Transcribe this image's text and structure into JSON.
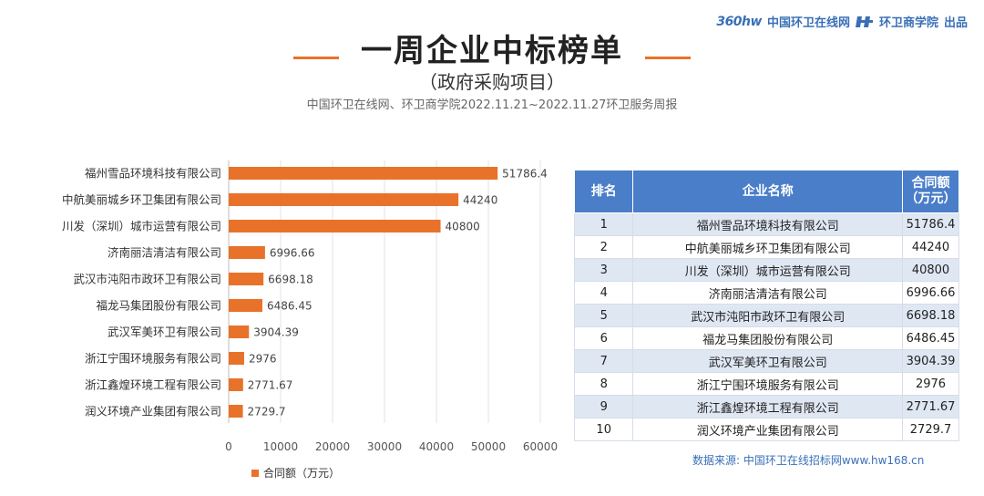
{
  "brand": {
    "logo_360": "360hw",
    "site": "中国环卫在线网",
    "school": "环卫商学院",
    "suffix": "出品"
  },
  "header": {
    "title": "一周企业中标榜单",
    "subtitle": "（政府采购项目）",
    "caption": "中国环卫在线网、环卫商学院2022.11.21~2022.11.27环卫服务周报"
  },
  "colors": {
    "bar": "#e8722a",
    "table_header": "#4a7ec9",
    "row_alt": "#dfe7f3"
  },
  "chart_data": {
    "type": "bar",
    "orientation": "horizontal",
    "categories": [
      "福州雪品环境科技有限公司",
      "中航美丽城乡环卫集团有限公司",
      "川发（深圳）城市运营有限公司",
      "济南丽洁清洁有限公司",
      "武汉市沌阳市政环卫有限公司",
      "福龙马集团股份有限公司",
      "武汉军美环卫有限公司",
      "浙江宁围环境服务有限公司",
      "浙江鑫煌环境工程有限公司",
      "润义环境产业集团有限公司"
    ],
    "values": [
      51786.4,
      44240,
      40800,
      6996.66,
      6698.18,
      6486.45,
      3904.39,
      2976,
      2771.67,
      2729.7
    ],
    "value_labels": [
      "51786.4",
      "44240",
      "40800",
      "6996.66",
      "6698.18",
      "6486.45",
      "3904.39",
      "2976",
      "2771.67",
      "2729.7"
    ],
    "xlim": [
      0,
      60000
    ],
    "x_ticks": [
      0,
      10000,
      20000,
      30000,
      40000,
      50000,
      60000
    ],
    "legend": "合同额（万元）",
    "legend_position": "bottom-left"
  },
  "table": {
    "headers": [
      "排名",
      "企业名称",
      "合同额（万元）"
    ],
    "header_amount_line1": "合同额",
    "header_amount_line2": "（万元）",
    "rows": [
      {
        "rank": "1",
        "name": "福州雪品环境科技有限公司",
        "amount": "51786.4"
      },
      {
        "rank": "2",
        "name": "中航美丽城乡环卫集团有限公司",
        "amount": "44240"
      },
      {
        "rank": "3",
        "name": "川发（深圳）城市运营有限公司",
        "amount": "40800"
      },
      {
        "rank": "4",
        "name": "济南丽洁清洁有限公司",
        "amount": "6996.66"
      },
      {
        "rank": "5",
        "name": "武汉市沌阳市政环卫有限公司",
        "amount": "6698.18"
      },
      {
        "rank": "6",
        "name": "福龙马集团股份有限公司",
        "amount": "6486.45"
      },
      {
        "rank": "7",
        "name": "武汉军美环卫有限公司",
        "amount": "3904.39"
      },
      {
        "rank": "8",
        "name": "浙江宁围环境服务有限公司",
        "amount": "2976"
      },
      {
        "rank": "9",
        "name": "浙江鑫煌环境工程有限公司",
        "amount": "2771.67"
      },
      {
        "rank": "10",
        "name": "润义环境产业集团有限公司",
        "amount": "2729.7"
      }
    ]
  },
  "source": "数据来源:   中国环卫在线招标网www.hw168.cn"
}
